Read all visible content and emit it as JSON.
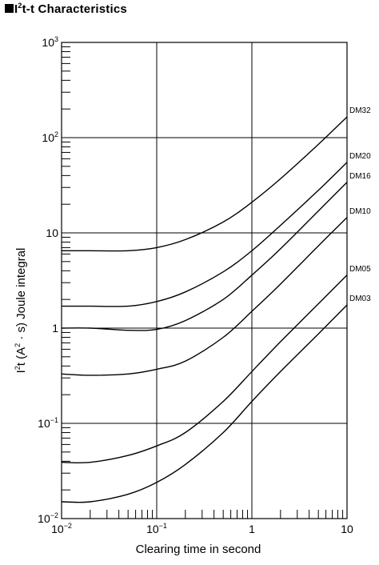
{
  "title": {
    "prefix": "I",
    "sup": "2",
    "rest": "t-t Characteristics"
  },
  "chart_data": {
    "type": "line",
    "xscale": "log",
    "yscale": "log",
    "xlim": [
      0.01,
      10
    ],
    "ylim": [
      0.01,
      1000
    ],
    "grid": true,
    "xlabel": "Clearing time in second",
    "ylabel": {
      "prefix": "I",
      "sup1": "2",
      "mid": "t (A",
      "sup2": "2",
      "rest": " · s) Joule integral"
    },
    "xticks": [
      {
        "base": "10",
        "exp": "−2"
      },
      {
        "base": "10",
        "exp": "−1"
      },
      {
        "base": "1",
        "exp": ""
      },
      {
        "base": "10",
        "exp": ""
      }
    ],
    "yticks": [
      {
        "base": "10",
        "exp": "−2"
      },
      {
        "base": "10",
        "exp": "−1"
      },
      {
        "base": "1",
        "exp": ""
      },
      {
        "base": "10",
        "exp": ""
      },
      {
        "base": "10",
        "exp": "2"
      },
      {
        "base": "10",
        "exp": "3"
      }
    ],
    "series": [
      {
        "name": "DM32",
        "x": [
          0.01,
          0.02,
          0.05,
          0.1,
          0.2,
          0.5,
          1,
          2,
          5,
          10
        ],
        "y": [
          6.5,
          6.5,
          6.5,
          7.0,
          8.5,
          13,
          21,
          37,
          85,
          165
        ]
      },
      {
        "name": "DM20",
        "x": [
          0.01,
          0.02,
          0.05,
          0.1,
          0.2,
          0.5,
          1,
          2,
          5,
          10
        ],
        "y": [
          1.7,
          1.7,
          1.7,
          1.9,
          2.4,
          3.9,
          6.5,
          12,
          28,
          55
        ]
      },
      {
        "name": "DM16",
        "x": [
          0.01,
          0.02,
          0.05,
          0.1,
          0.2,
          0.5,
          1,
          2,
          5,
          10
        ],
        "y": [
          1.0,
          1.0,
          0.95,
          0.97,
          1.2,
          2.0,
          3.6,
          6.8,
          17,
          34
        ]
      },
      {
        "name": "DM10",
        "x": [
          0.01,
          0.02,
          0.05,
          0.1,
          0.2,
          0.5,
          1,
          2,
          5,
          10
        ],
        "y": [
          0.33,
          0.32,
          0.33,
          0.37,
          0.45,
          0.8,
          1.5,
          2.9,
          7.3,
          14.5
        ]
      },
      {
        "name": "DM05",
        "x": [
          0.01,
          0.02,
          0.05,
          0.1,
          0.2,
          0.5,
          1,
          2,
          5,
          10
        ],
        "y": [
          0.039,
          0.039,
          0.046,
          0.058,
          0.08,
          0.17,
          0.35,
          0.72,
          1.8,
          3.6
        ]
      },
      {
        "name": "DM03",
        "x": [
          0.01,
          0.02,
          0.05,
          0.1,
          0.2,
          0.5,
          1,
          2,
          5,
          10
        ],
        "y": [
          0.015,
          0.015,
          0.018,
          0.024,
          0.037,
          0.08,
          0.17,
          0.35,
          0.87,
          1.75
        ]
      }
    ]
  }
}
